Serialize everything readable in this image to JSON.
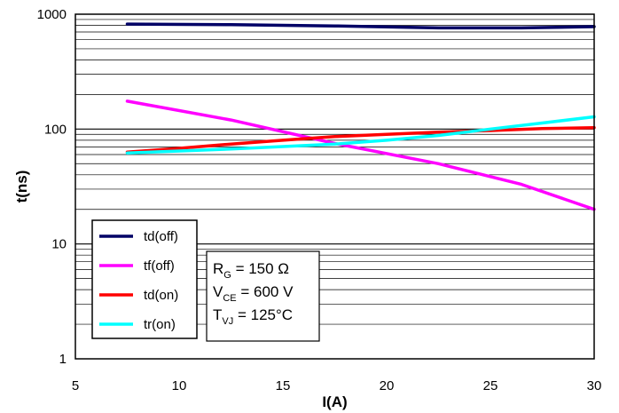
{
  "chart_data": {
    "type": "line",
    "xlabel": "I(A)",
    "ylabel": "t(ns)",
    "xlim": [
      5,
      30
    ],
    "ylim": [
      1,
      1000
    ],
    "yscale": "log",
    "x_ticks": [
      "5",
      "10",
      "15",
      "20",
      "25",
      "30"
    ],
    "y_ticks": [
      "1",
      "10",
      "100",
      "1000"
    ],
    "grid": true,
    "legend_placement": "bottom-left",
    "series": [
      {
        "name": "td(off)",
        "color": "#000066",
        "x": [
          7.5,
          12.5,
          17.5,
          22.5,
          26.5,
          30
        ],
        "y": [
          820,
          810,
          790,
          760,
          760,
          780
        ]
      },
      {
        "name": "tf(off)",
        "color": "#ff00ff",
        "x": [
          7.5,
          12.5,
          17.5,
          22.5,
          26.5,
          30
        ],
        "y": [
          175,
          120,
          75,
          50,
          33,
          20
        ]
      },
      {
        "name": "td(on)",
        "color": "#ff0000",
        "x": [
          7.5,
          10,
          12.5,
          15,
          17.5,
          20,
          22.5,
          25,
          27.5,
          30
        ],
        "y": [
          63,
          68,
          74,
          80,
          86,
          90,
          94,
          97,
          101,
          103
        ]
      },
      {
        "name": "tr(on)",
        "color": "#00ffff",
        "x": [
          7.5,
          12.5,
          17.5,
          20,
          22.5,
          25,
          27.5,
          30
        ],
        "y": [
          62,
          67,
          74,
          80,
          88,
          100,
          113,
          128
        ]
      }
    ],
    "annotation": {
      "lines": [
        {
          "main": "R",
          "sub": "G",
          "rest": " = 150 Ω"
        },
        {
          "main": "V",
          "sub": "CE",
          "rest": " = 600 V"
        },
        {
          "main": "T",
          "sub": "VJ",
          "rest": " = 125°C"
        }
      ]
    }
  }
}
